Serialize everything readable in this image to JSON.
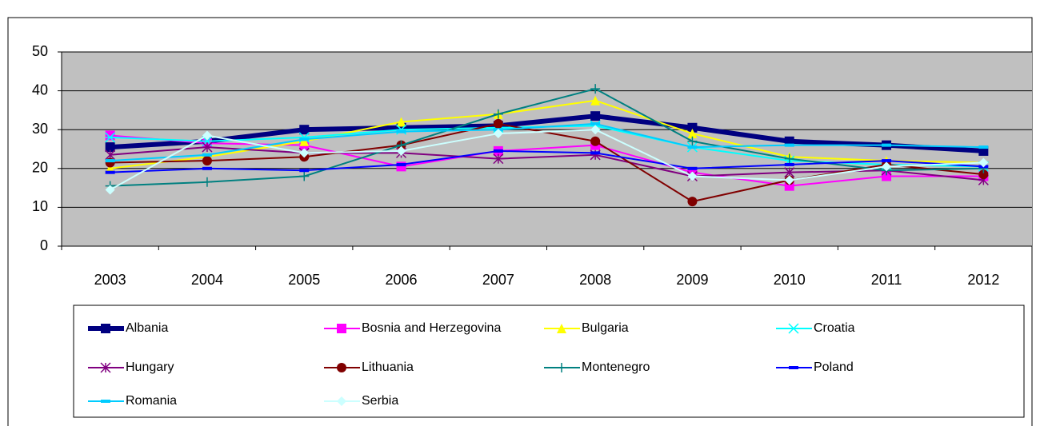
{
  "chart_data": {
    "type": "line",
    "categories": [
      "2003",
      "2004",
      "2005",
      "2006",
      "2007",
      "2008",
      "2009",
      "2010",
      "2011",
      "2012"
    ],
    "ylim": [
      0,
      50
    ],
    "yticks": [
      0,
      10,
      20,
      30,
      40,
      50
    ],
    "grid": true,
    "legend": "bottom",
    "series": [
      {
        "name": "Albania",
        "color": "#000080",
        "marker": "square",
        "line_width": 6,
        "values": [
          25.5,
          27,
          30,
          30.5,
          31,
          33.5,
          30.5,
          27,
          26,
          24.5
        ]
      },
      {
        "name": "Bosnia and Herzegovina",
        "color": "#ff00ff",
        "marker": "square",
        "line_width": 2,
        "values": [
          28.5,
          26.5,
          26,
          20.5,
          24.5,
          26,
          19,
          15.5,
          18,
          18
        ]
      },
      {
        "name": "Bulgaria",
        "color": "#ffff00",
        "marker": "triangle",
        "line_width": 2,
        "values": [
          20,
          23,
          27,
          32,
          34,
          37.5,
          29,
          23,
          22,
          21.5
        ]
      },
      {
        "name": "Croatia",
        "color": "#00ffff",
        "marker": "x",
        "line_width": 2,
        "values": [
          28,
          27,
          28,
          30,
          30.5,
          31,
          25.5,
          22,
          21,
          20.5
        ]
      },
      {
        "name": "Hungary",
        "color": "#800080",
        "marker": "star",
        "line_width": 2,
        "values": [
          23.5,
          25.5,
          24,
          24,
          22.5,
          23.5,
          18,
          19,
          19.5,
          17
        ]
      },
      {
        "name": "Lithuania",
        "color": "#800000",
        "marker": "circle",
        "line_width": 2,
        "values": [
          21.5,
          22,
          23,
          26,
          31.5,
          27,
          11.5,
          17,
          21,
          18.5
        ]
      },
      {
        "name": "Montenegro",
        "color": "#008080",
        "marker": "plus",
        "line_width": 2,
        "values": [
          15.5,
          16.5,
          18,
          26,
          34,
          40.5,
          27,
          22.5,
          19.5,
          20
        ]
      },
      {
        "name": "Poland",
        "color": "#0000ff",
        "marker": "dash",
        "line_width": 2,
        "values": [
          19,
          20,
          19.5,
          21,
          24.5,
          24,
          20,
          21,
          22,
          20.5
        ]
      },
      {
        "name": "Romania",
        "color": "#00ccff",
        "marker": "dash",
        "line_width": 2,
        "values": [
          22,
          23.5,
          27.5,
          29.5,
          30,
          31.5,
          25.5,
          26,
          26,
          25.5
        ]
      },
      {
        "name": "Serbia",
        "color": "#ccffff",
        "marker": "diamond",
        "line_width": 2,
        "values": [
          14.5,
          28.5,
          24,
          24.5,
          29,
          30,
          18,
          17,
          20.5,
          21.5
        ]
      }
    ]
  }
}
